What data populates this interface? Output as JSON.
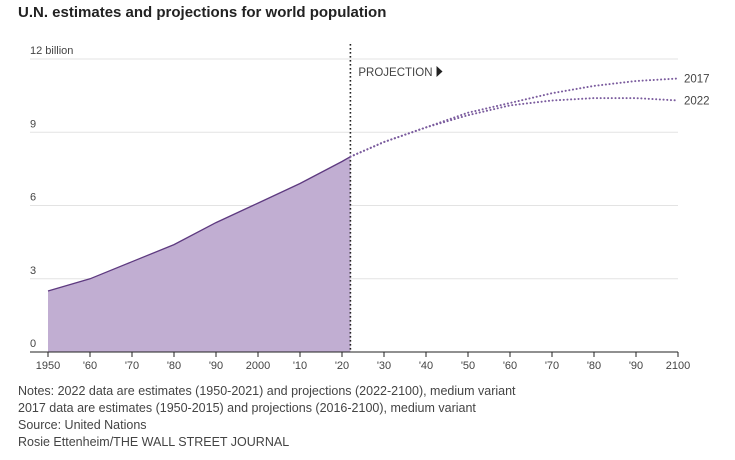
{
  "title": "U.N. estimates and projections for world population",
  "chart_data": {
    "type": "area",
    "title": "U.N. estimates and projections for world population",
    "ylim": [
      0,
      12
    ],
    "xlim": [
      1950,
      2100
    ],
    "y_ticks": [
      {
        "value": 0,
        "label": "0"
      },
      {
        "value": 3,
        "label": "3"
      },
      {
        "value": 6,
        "label": "6"
      },
      {
        "value": 9,
        "label": "9"
      },
      {
        "value": 12,
        "label": "12 billion"
      }
    ],
    "x_ticks": [
      {
        "value": 1950,
        "label": "1950"
      },
      {
        "value": 1960,
        "label": "'60"
      },
      {
        "value": 1970,
        "label": "'70"
      },
      {
        "value": 1980,
        "label": "'80"
      },
      {
        "value": 1990,
        "label": "'90"
      },
      {
        "value": 2000,
        "label": "2000"
      },
      {
        "value": 2010,
        "label": "'10"
      },
      {
        "value": 2020,
        "label": "'20"
      },
      {
        "value": 2030,
        "label": "'30"
      },
      {
        "value": 2040,
        "label": "'40"
      },
      {
        "value": 2050,
        "label": "'50"
      },
      {
        "value": 2060,
        "label": "'60"
      },
      {
        "value": 2070,
        "label": "'70"
      },
      {
        "value": 2080,
        "label": "'80"
      },
      {
        "value": 2090,
        "label": "'90"
      },
      {
        "value": 2100,
        "label": "2100"
      }
    ],
    "projection_year": 2022,
    "projection_label": "PROJECTION",
    "estimates": {
      "x": [
        1950,
        1960,
        1970,
        1980,
        1990,
        2000,
        2010,
        2020,
        2022
      ],
      "y": [
        2.5,
        3.0,
        3.7,
        4.4,
        5.3,
        6.1,
        6.9,
        7.8,
        8.0
      ]
    },
    "series": [
      {
        "name": "2017",
        "x": [
          2022,
          2030,
          2040,
          2050,
          2060,
          2070,
          2080,
          2090,
          2100
        ],
        "y": [
          8.0,
          8.6,
          9.2,
          9.8,
          10.2,
          10.6,
          10.9,
          11.1,
          11.2
        ]
      },
      {
        "name": "2022",
        "x": [
          2022,
          2030,
          2040,
          2050,
          2060,
          2070,
          2080,
          2090,
          2100
        ],
        "y": [
          8.0,
          8.6,
          9.2,
          9.7,
          10.1,
          10.3,
          10.4,
          10.4,
          10.3
        ]
      }
    ],
    "colors": {
      "area": "#c1aed2",
      "line": "#5e3a80",
      "dots": "#7b5c9e"
    }
  },
  "notes": [
    "Notes: 2022 data are estimates (1950-2021) and projections (2022-2100), medium variant",
    "2017 data are estimates (1950-2015) and projections (2016-2100), medium variant",
    "Source: United Nations",
    "Rosie Ettenheim/THE WALL STREET JOURNAL"
  ]
}
